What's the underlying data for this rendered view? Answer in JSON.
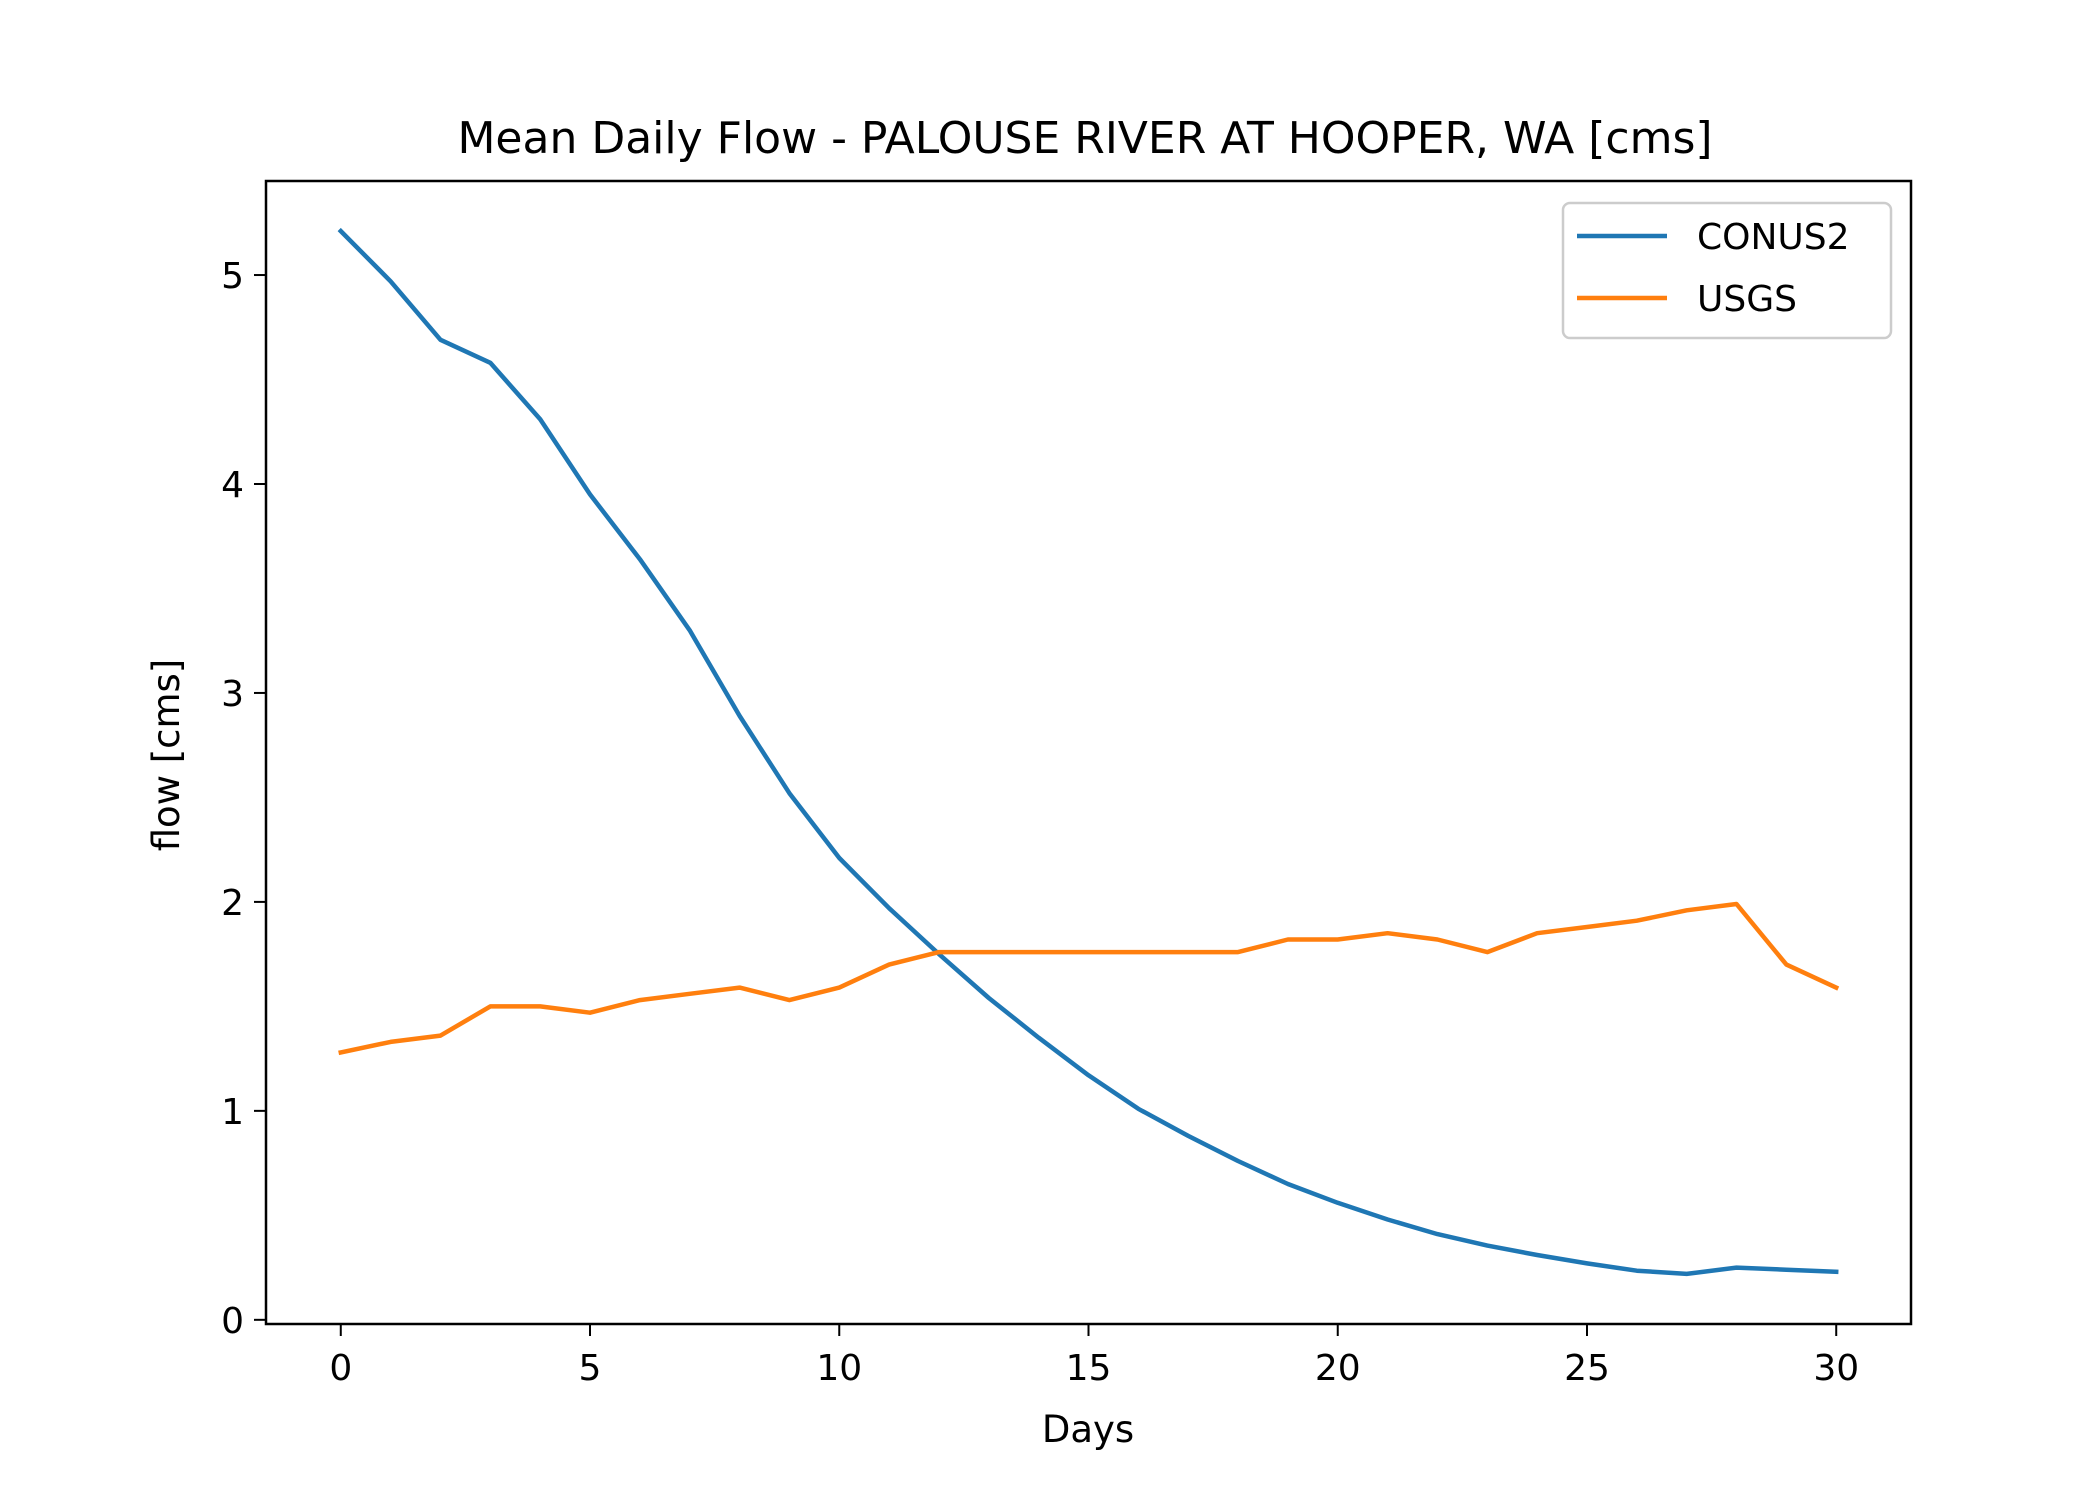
{
  "chart_data": {
    "type": "line",
    "title": "Mean Daily Flow - PALOUSE RIVER AT HOOPER, WA [cms]",
    "xlabel": "Days",
    "ylabel": "flow [cms]",
    "xlim": [
      -1.5,
      31.5
    ],
    "ylim": [
      -0.02,
      5.45
    ],
    "xticks": [
      0,
      5,
      10,
      15,
      20,
      25,
      30
    ],
    "yticks": [
      0,
      1,
      2,
      3,
      4,
      5
    ],
    "grid": false,
    "legend_position": "top-right",
    "x": [
      0,
      1,
      2,
      3,
      4,
      5,
      6,
      7,
      8,
      9,
      10,
      11,
      12,
      13,
      14,
      15,
      16,
      17,
      18,
      19,
      20,
      21,
      22,
      23,
      24,
      25,
      26,
      27,
      28,
      29,
      30
    ],
    "series": [
      {
        "name": "CONUS2",
        "color": "#1f77b4",
        "values": [
          5.21,
          4.97,
          4.69,
          4.58,
          4.31,
          3.95,
          3.64,
          3.3,
          2.89,
          2.52,
          2.21,
          1.97,
          1.75,
          1.54,
          1.35,
          1.17,
          1.01,
          0.88,
          0.76,
          0.65,
          0.56,
          0.48,
          0.41,
          0.355,
          0.31,
          0.27,
          0.235,
          0.22,
          0.25,
          0.24,
          0.23
        ]
      },
      {
        "name": "USGS",
        "color": "#ff7f0e",
        "values": [
          1.28,
          1.33,
          1.36,
          1.5,
          1.5,
          1.47,
          1.53,
          1.56,
          1.59,
          1.53,
          1.59,
          1.7,
          1.76,
          1.76,
          1.76,
          1.76,
          1.76,
          1.76,
          1.76,
          1.82,
          1.82,
          1.85,
          1.82,
          1.76,
          1.85,
          1.88,
          1.91,
          1.96,
          1.99,
          1.7,
          1.59
        ]
      }
    ]
  }
}
